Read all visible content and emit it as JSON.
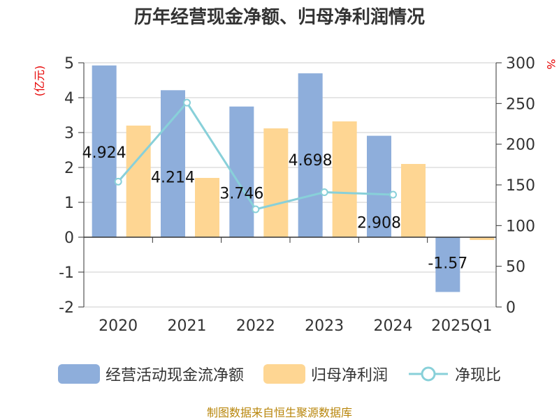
{
  "title": "历年经营现金净额、归母净利润情况",
  "source": "制图数据来自恒生聚源数据库",
  "colors": {
    "cash": "#8eaedb",
    "profit": "#fed693",
    "ratio": "#88d0d9",
    "unit": "#e60000"
  },
  "chart_data": {
    "type": "bar",
    "title": "历年经营现金净额、归母净利润情况",
    "categories": [
      "2020",
      "2021",
      "2022",
      "2023",
      "2024",
      "2025Q1"
    ],
    "left_axis": {
      "label": "(亿元)",
      "ylim": [
        -2,
        5
      ],
      "ticks": [
        -2,
        -1,
        0,
        1,
        2,
        3,
        4,
        5
      ]
    },
    "right_axis": {
      "label": "%",
      "ylim": [
        0,
        300
      ],
      "ticks": [
        0,
        50,
        100,
        150,
        200,
        250,
        300
      ]
    },
    "series": [
      {
        "name": "经营活动现金流净额",
        "type": "bar",
        "axis": "left",
        "values": [
          4.924,
          4.214,
          3.746,
          4.698,
          2.908,
          -1.57
        ],
        "labels": [
          "4.924",
          "4.214",
          "3.746",
          "4.698",
          "2.908",
          "-1.57"
        ]
      },
      {
        "name": "归母净利润",
        "type": "bar",
        "axis": "left",
        "values": [
          3.2,
          1.7,
          3.12,
          3.32,
          2.1,
          -0.08
        ]
      },
      {
        "name": "净现比",
        "type": "line",
        "axis": "right",
        "values": [
          154,
          251,
          120,
          141,
          138,
          null
        ]
      }
    ],
    "grid": true,
    "legend_position": "bottom"
  }
}
